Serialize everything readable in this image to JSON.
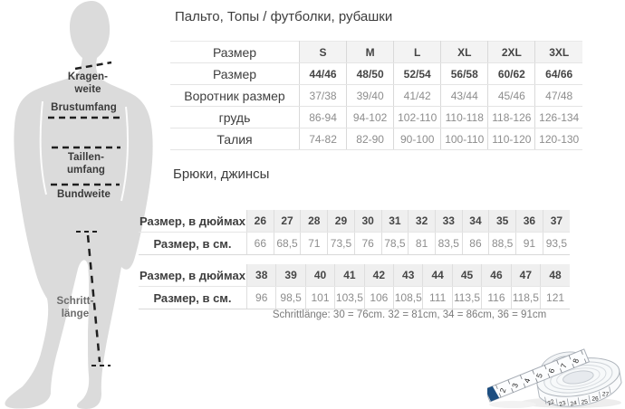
{
  "figure": {
    "collar_line1": "Kragen-",
    "collar_line2": "weite",
    "chest": "Brustumfang",
    "waist_line1": "Taillen-",
    "waist_line2": "umfang",
    "seat": "Bundweite",
    "inseam_line1": "Schritt-",
    "inseam_line2": "länge",
    "silhouette_color": "#dbdbdb",
    "dash_color": "#1f1f1f"
  },
  "sections": {
    "coats": {
      "title": "Пальто, Топы / футболки, рубашки",
      "table": {
        "rows": [
          {
            "label": "Размер",
            "style": "header",
            "values": [
              "S",
              "M",
              "L",
              "XL",
              "2XL",
              "3XL"
            ]
          },
          {
            "label": "Размер",
            "style": "bold",
            "values": [
              "44/46",
              "48/50",
              "52/54",
              "56/58",
              "60/62",
              "64/66"
            ]
          },
          {
            "label": "Воротник размер",
            "style": "normal",
            "values": [
              "37/38",
              "39/40",
              "41/42",
              "43/44",
              "45/46",
              "47/48"
            ]
          },
          {
            "label": "грудь",
            "style": "normal",
            "values": [
              "86-94",
              "94-102",
              "102-110",
              "110-118",
              "118-126",
              "126-134"
            ]
          },
          {
            "label": "Талия",
            "style": "normal",
            "values": [
              "74-82",
              "82-90",
              "90-100",
              "100-110",
              "110-120",
              "120-130"
            ]
          }
        ]
      }
    },
    "pants": {
      "title": "Брюки, джинсы",
      "tables": [
        {
          "rows": [
            {
              "label": "Размер, в дюймах",
              "style": "inches",
              "values": [
                "26",
                "27",
                "28",
                "29",
                "30",
                "31",
                "32",
                "33",
                "34",
                "35",
                "36",
                "37"
              ]
            },
            {
              "label": "Размер, в см.",
              "style": "cm",
              "values": [
                "66",
                "68,5",
                "71",
                "73,5",
                "76",
                "78,5",
                "81",
                "83,5",
                "86",
                "88,5",
                "91",
                "93,5"
              ]
            }
          ]
        },
        {
          "rows": [
            {
              "label": "Размер, в дюймах",
              "style": "inches",
              "values": [
                "38",
                "39",
                "40",
                "41",
                "42",
                "43",
                "44",
                "45",
                "46",
                "47",
                "48"
              ]
            },
            {
              "label": "Размер, в см.",
              "style": "cm",
              "values": [
                "96",
                "98,5",
                "101",
                "103,5",
                "106",
                "108,5",
                "111",
                "113,5",
                "116",
                "118,5",
                "121"
              ]
            }
          ]
        }
      ],
      "note": "Schrittlänge: 30 = 76cm. 32 = 81cm, 34 = 86cm, 36 = 91cm"
    }
  },
  "tape": {
    "strip_numbers": [
      "2",
      "3",
      "4",
      "5",
      "6",
      "7",
      "8"
    ],
    "roll_numbers": [
      "22",
      "23",
      "24",
      "25",
      "26",
      "27"
    ],
    "tip_color": "#1d4e80"
  }
}
